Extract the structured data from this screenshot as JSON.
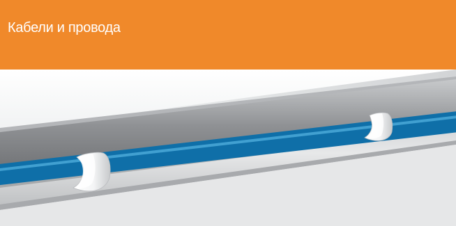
{
  "header": {
    "title": "Кабели и провода"
  },
  "illustration": {
    "icon": "cable-in-channel-illustration",
    "colors": {
      "header_background": "#f0892a",
      "cable": "#1d95d4",
      "clip": "#ffffff",
      "channel": "#9ea0a3"
    }
  }
}
